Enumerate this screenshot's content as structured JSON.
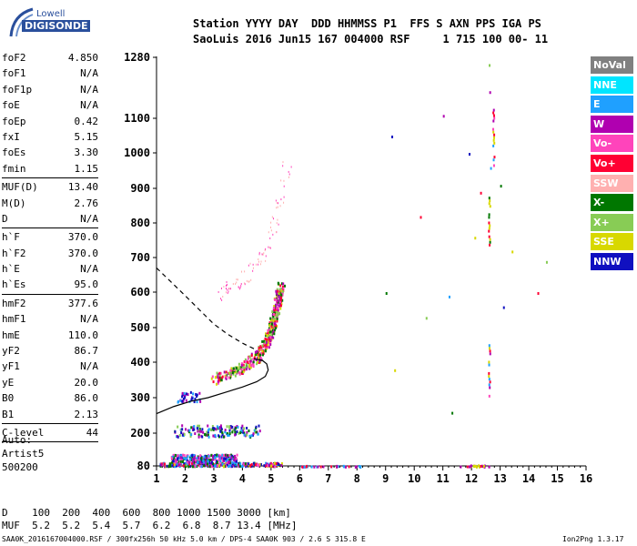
{
  "logo": {
    "line1": "Lowell",
    "line2": "DIGISONDE"
  },
  "header": {
    "line1": "Station YYYY DAY  DDD HHMMSS P1  FFS S AXN PPS IGA PS",
    "line2": "SaoLuis 2016 Jun15 167 004000 RSF     1 715 100 00- 11"
  },
  "params": [
    {
      "name": "foF2",
      "value": "4.850"
    },
    {
      "name": "foF1",
      "value": "N/A"
    },
    {
      "name": "foF1p",
      "value": "N/A"
    },
    {
      "name": "foE",
      "value": "N/A"
    },
    {
      "name": "foEp",
      "value": "0.42"
    },
    {
      "name": "fxI",
      "value": "5.15"
    },
    {
      "name": "foEs",
      "value": "3.30"
    },
    {
      "name": "fmin",
      "value": "1.15"
    },
    {
      "sep": true
    },
    {
      "name": "MUF(D)",
      "value": "13.40"
    },
    {
      "name": "M(D)",
      "value": "2.76"
    },
    {
      "name": "D",
      "value": "N/A"
    },
    {
      "sep": true
    },
    {
      "name": "h`F",
      "value": "370.0"
    },
    {
      "name": "h`F2",
      "value": "370.0"
    },
    {
      "name": "h`E",
      "value": "N/A"
    },
    {
      "name": "h`Es",
      "value": "95.0"
    },
    {
      "sep": true
    },
    {
      "name": "hmF2",
      "value": "377.6"
    },
    {
      "name": "hmF1",
      "value": "N/A"
    },
    {
      "name": "hmE",
      "value": "110.0"
    },
    {
      "name": "yF2",
      "value": "86.7"
    },
    {
      "name": "yF1",
      "value": "N/A"
    },
    {
      "name": "yE",
      "value": "20.0"
    },
    {
      "name": "B0",
      "value": "86.0"
    },
    {
      "name": "B1",
      "value": "2.13"
    },
    {
      "sep": true
    },
    {
      "name": "C-level",
      "value": "44"
    },
    {
      "sep": true
    }
  ],
  "footer": [
    "Auto:",
    "Artist5",
    "500200"
  ],
  "legend": [
    {
      "label": "NoVal",
      "color": "#808080"
    },
    {
      "label": "NNE",
      "color": "#00e5ff"
    },
    {
      "label": "E",
      "color": "#1fa0ff"
    },
    {
      "label": "W",
      "color": "#b000b0"
    },
    {
      "label": "Vo-",
      "color": "#ff44bb"
    },
    {
      "label": "Vo+",
      "color": "#ff0033"
    },
    {
      "label": "SSW",
      "color": "#ffb0b0"
    },
    {
      "label": "X-",
      "color": "#007700"
    },
    {
      "label": "X+",
      "color": "#88cc55"
    },
    {
      "label": "SSE",
      "color": "#d8d800"
    },
    {
      "label": "NNW",
      "color": "#1010c0"
    }
  ],
  "bottom": {
    "line1": "D    100  200  400  600  800 1000 1500 3000 [km]",
    "line2": "MUF  5.2  5.2  5.4  5.7  6.2  6.8  8.7 13.4 [MHz]"
  },
  "infoline": "SAA0K_2016167004000.RSF / 300fx256h 50 kHz 5.0 km / DPS-4 SAA0K 903 / 2.6 S 315.8 E",
  "version": "Ion2Png 1.3.17",
  "chart_data": {
    "type": "scatter",
    "x_ticks": [
      1,
      2,
      3,
      4,
      5,
      6,
      7,
      8,
      9,
      10,
      11,
      12,
      13,
      14,
      15,
      16
    ],
    "y_ticks": [
      80,
      200,
      300,
      400,
      500,
      600,
      700,
      800,
      900,
      1000,
      1100,
      1280
    ],
    "xlim": [
      1,
      16
    ],
    "ylim": [
      80,
      1280
    ],
    "grid": false,
    "clusters": [
      {
        "x": [
          1.1,
          5.4
        ],
        "y": [
          82,
          95
        ],
        "n": 260,
        "colors": [
          "#b000b0",
          "#1fa0ff",
          "#007700",
          "#d8d800",
          "#ff0033",
          "#ff44bb",
          "#1010c0"
        ]
      },
      {
        "x": [
          1.5,
          3.8
        ],
        "y": [
          96,
          125
        ],
        "n": 240,
        "colors": [
          "#b000b0",
          "#ff44bb",
          "#1010c0",
          "#1fa0ff",
          "#007700"
        ]
      },
      {
        "x": [
          1.6,
          4.6
        ],
        "y": [
          190,
          225
        ],
        "n": 150,
        "colors": [
          "#1fa0ff",
          "#1010c0",
          "#007700",
          "#88cc55",
          "#b000b0"
        ]
      },
      {
        "x": [
          1.7,
          2.5
        ],
        "y": [
          290,
          320
        ],
        "n": 35,
        "colors": [
          "#1fa0ff",
          "#1010c0",
          "#b000b0"
        ]
      },
      {
        "x": [
          6.0,
          8.2
        ],
        "y": [
          80,
          84
        ],
        "n": 30,
        "colors": [
          "#ff0033",
          "#b000b0",
          "#1fa0ff"
        ]
      },
      {
        "x": [
          11.5,
          12.6
        ],
        "y": [
          80,
          86
        ],
        "n": 20,
        "colors": [
          "#ff0033",
          "#b000b0",
          "#d8d800"
        ]
      }
    ],
    "f2_trace": {
      "x": [
        3.0,
        3.5,
        3.9,
        4.2,
        4.5,
        4.7,
        4.85,
        4.95,
        5.05,
        5.15,
        5.25,
        5.35
      ],
      "y": [
        355,
        370,
        385,
        400,
        420,
        440,
        460,
        490,
        520,
        555,
        590,
        630
      ],
      "colors": [
        "#ff0033",
        "#007700",
        "#88cc55",
        "#b000b0",
        "#ff44bb",
        "#d8d800"
      ]
    },
    "upper_trace": {
      "x": [
        3.1,
        3.7,
        4.3,
        4.8,
        5.2,
        5.6
      ],
      "y": [
        590,
        620,
        660,
        720,
        820,
        980
      ],
      "colors": [
        "#ffb0b0",
        "#ff44bb"
      ]
    },
    "sparse": {
      "x": [
        9.0,
        9.2,
        9.3,
        10.2,
        10.4,
        11.0,
        11.2,
        11.3,
        11.9,
        12.1,
        12.3,
        12.6,
        12.62,
        12.65,
        13.0,
        13.1,
        13.4,
        14.3,
        14.6
      ],
      "y": [
        600,
        1050,
        380,
        820,
        530,
        1110,
        590,
        260,
        1000,
        760,
        890,
        1260,
        1180,
        960,
        910,
        560,
        720,
        600,
        690
      ],
      "colors": [
        "#007700",
        "#1010c0",
        "#d8d800",
        "#ff0033",
        "#88cc55",
        "#b000b0",
        "#1fa0ff"
      ]
    },
    "columns": [
      {
        "x": 12.6,
        "y": [
          300,
          460
        ],
        "colors": [
          "#ff0033",
          "#b000b0",
          "#ff44bb",
          "#d8d800",
          "#1fa0ff"
        ]
      },
      {
        "x": 12.6,
        "y": [
          740,
          900
        ],
        "colors": [
          "#007700",
          "#88cc55",
          "#d8d800",
          "#ff0033"
        ]
      },
      {
        "x": 12.75,
        "y": [
          960,
          1140
        ],
        "colors": [
          "#ff0033",
          "#ff44bb",
          "#b000b0",
          "#d8d800",
          "#1fa0ff"
        ]
      }
    ],
    "profile_dashed": {
      "x": [
        1.0,
        1.5,
        2.0,
        2.5,
        3.0,
        3.5,
        4.0,
        4.5
      ],
      "y": [
        670,
        630,
        590,
        550,
        510,
        480,
        455,
        435
      ]
    },
    "profile_solid": {
      "x": [
        1.0,
        1.6,
        2.2,
        2.8,
        3.4,
        4.0,
        4.5,
        4.8,
        4.9,
        4.85,
        4.7,
        4.4
      ],
      "y": [
        255,
        275,
        290,
        300,
        315,
        330,
        345,
        360,
        378,
        395,
        405,
        410
      ]
    }
  }
}
